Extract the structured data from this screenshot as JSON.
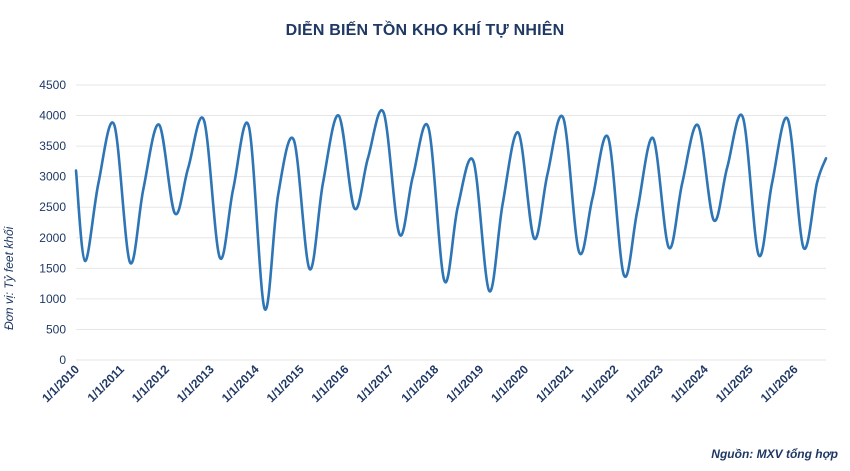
{
  "chart_data": {
    "type": "line",
    "title": "DIỄN BIẾN TỒN KHO KHÍ TỰ NHIÊN",
    "ylabel": "Đơn vị: Tỷ feet khối",
    "xlabel": "",
    "source": "Nguồn: MXV tổng hợp",
    "ylim": [
      0,
      4500
    ],
    "yticks": [
      0,
      500,
      1000,
      1500,
      2000,
      2500,
      3000,
      3500,
      4000,
      4500
    ],
    "xticks": [
      "1/1/2010",
      "1/1/2011",
      "1/1/2012",
      "1/1/2013",
      "1/1/2014",
      "1/1/2015",
      "1/1/2016",
      "1/1/2017",
      "1/1/2018",
      "1/1/2019",
      "1/1/2020",
      "1/1/2021",
      "1/1/2022",
      "1/1/2023",
      "1/1/2024",
      "1/1/2025",
      "1/1/2026"
    ],
    "grid": "horizontal",
    "line_color": "#2e75b6",
    "x": [
      2010.0,
      2010.2,
      2010.5,
      2010.85,
      2011.2,
      2011.5,
      2011.85,
      2012.2,
      2012.5,
      2012.85,
      2013.2,
      2013.5,
      2013.85,
      2014.2,
      2014.5,
      2014.85,
      2015.2,
      2015.5,
      2015.85,
      2016.2,
      2016.5,
      2016.85,
      2017.2,
      2017.5,
      2017.85,
      2018.2,
      2018.5,
      2018.85,
      2019.2,
      2019.5,
      2019.85,
      2020.2,
      2020.5,
      2020.85,
      2021.2,
      2021.5,
      2021.85,
      2022.2,
      2022.5,
      2022.85,
      2023.2,
      2023.5,
      2023.85,
      2024.2,
      2024.5,
      2024.85,
      2025.2,
      2025.5,
      2025.85,
      2026.2,
      2026.5,
      2026.7
    ],
    "y": [
      3100,
      1620,
      2900,
      3850,
      1600,
      2800,
      3850,
      2400,
      3150,
      3920,
      1680,
      2800,
      3820,
      840,
      2700,
      3600,
      1490,
      2900,
      4000,
      2480,
      3300,
      4050,
      2060,
      3000,
      3800,
      1300,
      2500,
      3250,
      1130,
      2550,
      3720,
      1990,
      3050,
      3960,
      1770,
      2650,
      3640,
      1390,
      2450,
      3630,
      1840,
      2900,
      3840,
      2290,
      3150,
      3970,
      1720,
      2900,
      3940,
      1840,
      2900,
      3300
    ]
  }
}
